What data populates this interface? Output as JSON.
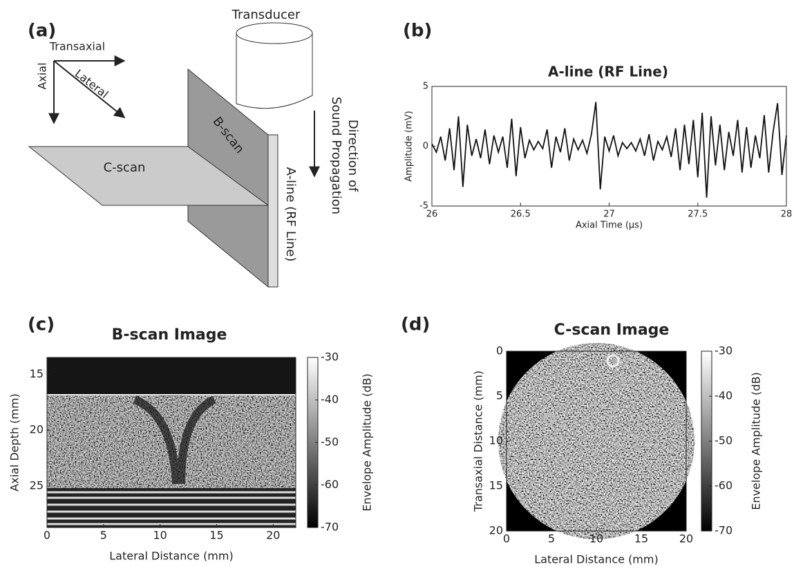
{
  "diagram": {
    "panel_label": "(a)",
    "transaxial": "Transaxial",
    "axial": "Axial",
    "lateral": "Lateral",
    "transducer": "Transducer",
    "b_scan": "B-scan",
    "c_scan": "C-scan",
    "a_line": "A-line (RF Line)",
    "direction": [
      "Direction of",
      "Sound Propagation"
    ]
  },
  "chart_data": [
    {
      "type": "line",
      "panel_label": "(b)",
      "title": "A-line (RF Line)",
      "xlabel": "Axial Time (μs)",
      "ylabel": "Amplitude (mV)",
      "xlim": [
        26,
        28
      ],
      "ylim": [
        -5,
        5
      ],
      "xticks": [
        26,
        26.5,
        27,
        27.5,
        28
      ],
      "yticks": [
        -5,
        0,
        5
      ],
      "x": [
        26,
        26.025,
        26.05,
        26.075,
        26.1,
        26.125,
        26.15,
        26.175,
        26.2,
        26.225,
        26.25,
        26.275,
        26.3,
        26.325,
        26.35,
        26.375,
        26.4,
        26.425,
        26.45,
        26.475,
        26.5,
        26.525,
        26.55,
        26.575,
        26.6,
        26.625,
        26.65,
        26.675,
        26.7,
        26.725,
        26.75,
        26.775,
        26.8,
        26.825,
        26.85,
        26.875,
        26.9,
        26.925,
        26.95,
        26.975,
        27,
        27.025,
        27.05,
        27.075,
        27.1,
        27.125,
        27.15,
        27.175,
        27.2,
        27.225,
        27.25,
        27.275,
        27.3,
        27.325,
        27.35,
        27.375,
        27.4,
        27.425,
        27.45,
        27.475,
        27.5,
        27.525,
        27.55,
        27.575,
        27.6,
        27.625,
        27.65,
        27.675,
        27.7,
        27.725,
        27.75,
        27.775,
        27.8,
        27.825,
        27.85,
        27.875,
        27.9,
        27.925,
        27.95,
        27.975,
        28
      ],
      "series": [
        {
          "color": "#111111",
          "values": [
            0.2,
            -0.5,
            0.8,
            -1.2,
            1.5,
            -2.0,
            2.5,
            -3.4,
            1.8,
            -0.8,
            0.6,
            -1.0,
            1.4,
            -1.5,
            0.9,
            -0.5,
            0.8,
            -1.8,
            2.3,
            -2.5,
            1.6,
            -1.0,
            0.5,
            -0.3,
            0.4,
            -0.2,
            1.4,
            -1.8,
            0.8,
            -0.5,
            1.5,
            -1.2,
            0.6,
            -0.3,
            0.5,
            -0.6,
            1.0,
            3.7,
            -3.6,
            0.8,
            -0.4,
            0.9,
            -0.8,
            0.3,
            -0.2,
            0.3,
            -0.4,
            0.6,
            -0.8,
            1.0,
            -1.2,
            0.4,
            -0.3,
            0.8,
            -0.9,
            1.5,
            -2.0,
            1.8,
            -1.5,
            2.2,
            -2.6,
            2.8,
            -4.3,
            2.5,
            -1.6,
            1.8,
            -2.0,
            1.2,
            -0.8,
            2.2,
            -2.2,
            1.6,
            -1.8,
            0.9,
            -1.0,
            2.6,
            -2.2,
            1.2,
            3.6,
            -2.4,
            0.9
          ]
        }
      ]
    },
    {
      "type": "image",
      "panel_label": "(c)",
      "title": "B-scan Image",
      "xlabel": "Lateral Distance (mm)",
      "ylabel": "Axial Depth (mm)",
      "xlim": [
        0,
        22
      ],
      "ylim": [
        28.7,
        13.5
      ],
      "xticks": [
        0,
        5,
        10,
        15,
        20
      ],
      "yticks": [
        15,
        20,
        25
      ],
      "colorbar": {
        "label": "Envelope Amplitude (dB)",
        "clim": [
          -70,
          -30
        ],
        "ticks": [
          -30,
          -40,
          -50,
          -60,
          -70
        ]
      }
    },
    {
      "type": "image",
      "panel_label": "(d)",
      "title": "C-scan Image",
      "xlabel": "Lateral Distance (mm)",
      "ylabel": "Transaxial Distance (mm)",
      "xlim": [
        0,
        20
      ],
      "ylim": [
        20,
        0
      ],
      "xticks": [
        0,
        5,
        10,
        15,
        20
      ],
      "yticks": [
        0,
        5,
        10,
        15,
        20
      ],
      "colorbar": {
        "label": "Envelope Amplitude (dB)",
        "clim": [
          -70,
          -30
        ],
        "ticks": [
          -30,
          -40,
          -50,
          -60,
          -70
        ]
      }
    }
  ]
}
